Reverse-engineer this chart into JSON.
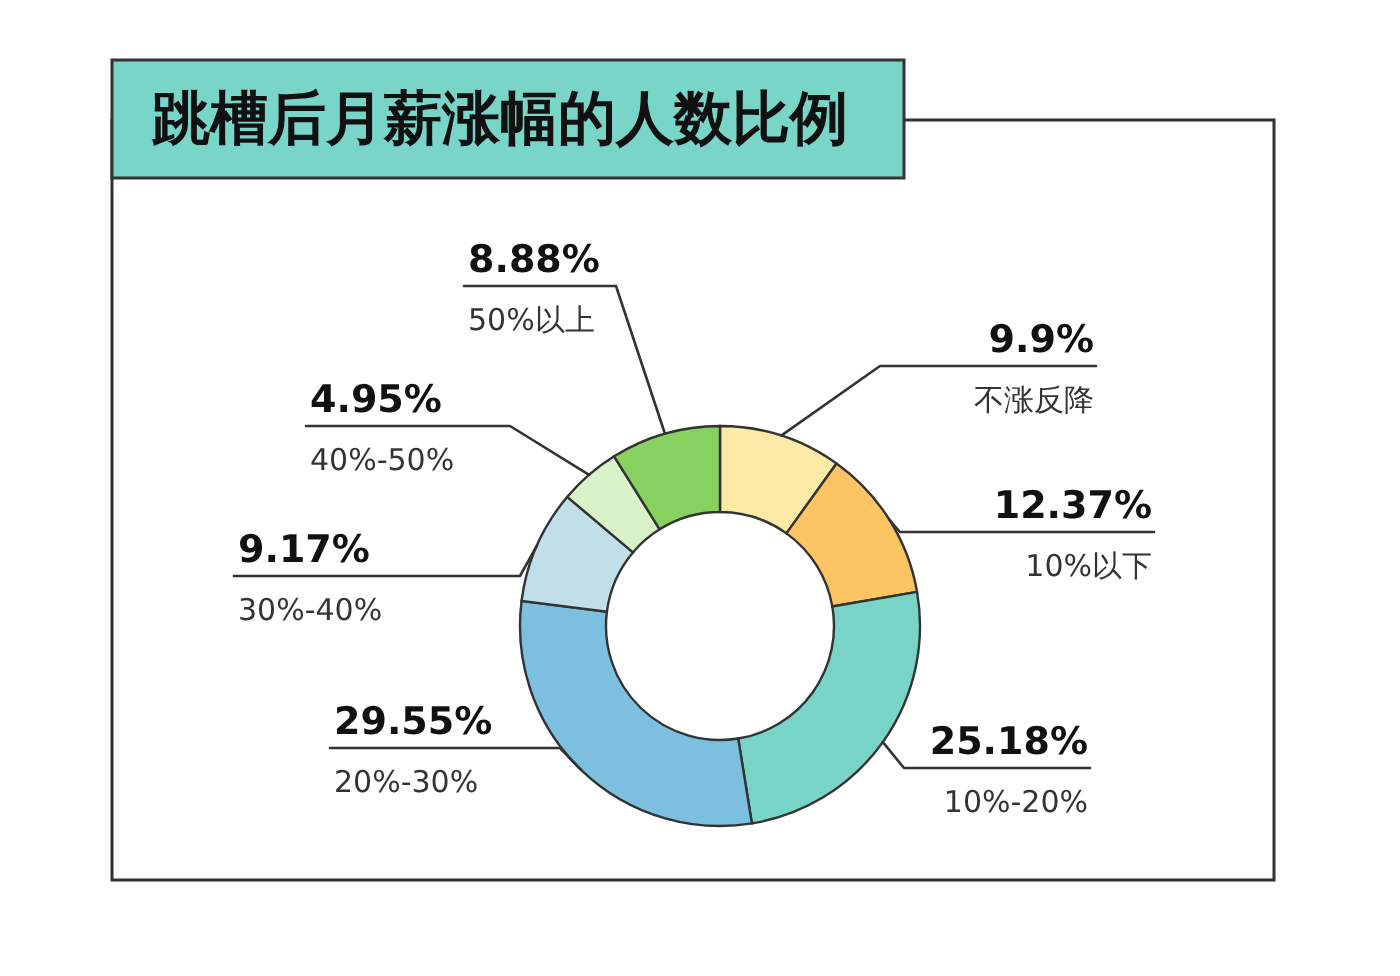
{
  "chart_data": {
    "type": "donut",
    "title": "跳槽后月薪涨幅的人数比例",
    "categories": [
      "不涨反降",
      "10%以下",
      "10%-20%",
      "20%-30%",
      "30%-40%",
      "40%-50%",
      "50%以上"
    ],
    "values": [
      9.9,
      12.37,
      25.18,
      29.55,
      9.17,
      4.95,
      8.88
    ],
    "colors": [
      "#fde9a6",
      "#fdc463",
      "#78d4c6",
      "#7cbfdf",
      "#c0dfe9",
      "#d8f3c8",
      "#86d160"
    ],
    "value_labels": [
      "9.9%",
      "12.37%",
      "25.18%",
      "29.55%",
      "9.17%",
      "4.95%",
      "8.88%"
    ]
  }
}
